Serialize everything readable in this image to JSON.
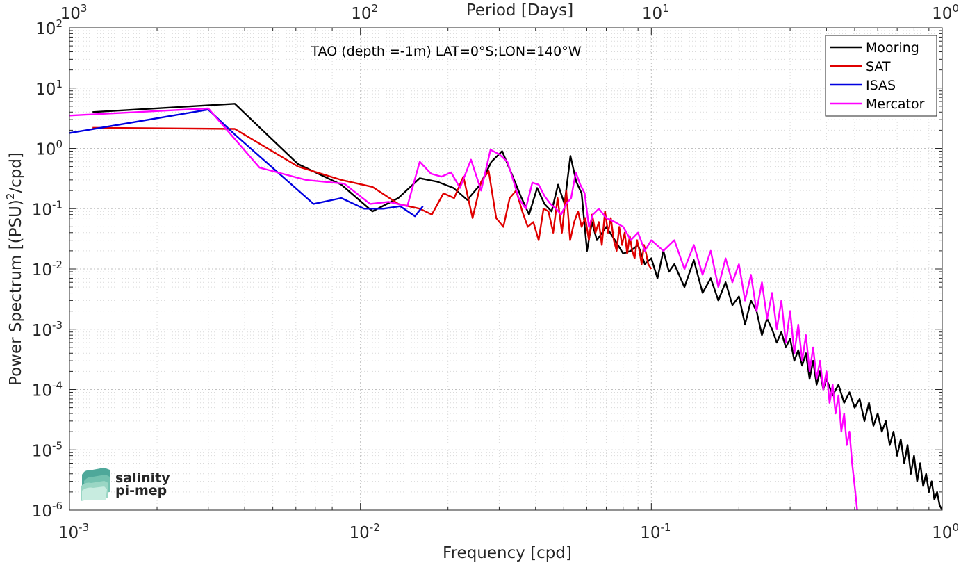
{
  "chart_data": {
    "type": "line",
    "title": "TAO (depth =-1m) LAT=0°S;LON=140°W",
    "xlabel": "Frequency [cpd]",
    "ylabel_main": "Power Spectrum [(PSU)",
    "ylabel_sup": "2",
    "ylabel_tail": "/cpd]",
    "top_xlabel": "Period [Days]",
    "x_scale": "log",
    "y_scale": "log",
    "xlim": [
      0.001,
      1
    ],
    "ylim": [
      1e-06,
      100
    ],
    "grid": true,
    "legend_position": "top-right",
    "x_ticks": [
      {
        "value": 0.001,
        "base": "10",
        "exp": "-3"
      },
      {
        "value": 0.01,
        "base": "10",
        "exp": "-2"
      },
      {
        "value": 0.1,
        "base": "10",
        "exp": "-1"
      },
      {
        "value": 1,
        "base": "10",
        "exp": "0"
      }
    ],
    "y_ticks": [
      {
        "value": 100,
        "base": "10",
        "exp": "2"
      },
      {
        "value": 10,
        "base": "10",
        "exp": "1"
      },
      {
        "value": 1,
        "base": "10",
        "exp": "0"
      },
      {
        "value": 0.1,
        "base": "10",
        "exp": "-1"
      },
      {
        "value": 0.01,
        "base": "10",
        "exp": "-2"
      },
      {
        "value": 0.001,
        "base": "10",
        "exp": "-3"
      },
      {
        "value": 0.0001,
        "base": "10",
        "exp": "-4"
      },
      {
        "value": 1e-05,
        "base": "10",
        "exp": "-5"
      },
      {
        "value": 1e-06,
        "base": "10",
        "exp": "-6"
      }
    ],
    "top_ticks": [
      {
        "period": 1000,
        "base": "10",
        "exp": "3"
      },
      {
        "period": 100,
        "base": "10",
        "exp": "2"
      },
      {
        "period": 10,
        "base": "10",
        "exp": "1"
      },
      {
        "period": 1,
        "base": "10",
        "exp": "0"
      }
    ],
    "series": [
      {
        "name": "Mooring",
        "color": "#000000",
        "x": [
          0.0012,
          0.0037,
          0.0061,
          0.0086,
          0.011,
          0.0135,
          0.016,
          0.0184,
          0.0209,
          0.0233,
          0.0258,
          0.0282,
          0.0307,
          0.0331,
          0.0356,
          0.038,
          0.0405,
          0.0429,
          0.0454,
          0.0478,
          0.0503,
          0.0527,
          0.0552,
          0.0576,
          0.0601,
          0.0625,
          0.065,
          0.07,
          0.075,
          0.08,
          0.085,
          0.09,
          0.095,
          0.1,
          0.105,
          0.11,
          0.115,
          0.12,
          0.13,
          0.14,
          0.15,
          0.16,
          0.17,
          0.18,
          0.19,
          0.2,
          0.21,
          0.22,
          0.23,
          0.24,
          0.25,
          0.26,
          0.27,
          0.28,
          0.29,
          0.3,
          0.31,
          0.32,
          0.33,
          0.34,
          0.35,
          0.36,
          0.37,
          0.38,
          0.39,
          0.4,
          0.42,
          0.44,
          0.46,
          0.48,
          0.5,
          0.52,
          0.54,
          0.56,
          0.58,
          0.6,
          0.62,
          0.64,
          0.66,
          0.68,
          0.7,
          0.72,
          0.74,
          0.76,
          0.78,
          0.8,
          0.82,
          0.84,
          0.86,
          0.88,
          0.9,
          0.92,
          0.94,
          0.96,
          0.98,
          1.0
        ],
        "y": [
          4.0,
          5.5,
          0.55,
          0.25,
          0.09,
          0.15,
          0.32,
          0.28,
          0.22,
          0.14,
          0.25,
          0.6,
          0.9,
          0.38,
          0.16,
          0.08,
          0.22,
          0.12,
          0.09,
          0.25,
          0.12,
          0.75,
          0.28,
          0.18,
          0.02,
          0.06,
          0.03,
          0.05,
          0.03,
          0.018,
          0.02,
          0.025,
          0.012,
          0.015,
          0.007,
          0.02,
          0.009,
          0.012,
          0.005,
          0.014,
          0.004,
          0.007,
          0.003,
          0.006,
          0.0025,
          0.0035,
          0.0012,
          0.003,
          0.002,
          0.0008,
          0.0015,
          0.001,
          0.0006,
          0.0009,
          0.0005,
          0.0007,
          0.0003,
          0.00045,
          0.00025,
          0.0004,
          0.00015,
          0.0003,
          0.00012,
          0.0002,
          0.0001,
          0.00015,
          8e-05,
          0.00012,
          6e-05,
          9e-05,
          5e-05,
          7e-05,
          3e-05,
          6e-05,
          2.5e-05,
          4e-05,
          2e-05,
          3e-05,
          1.2e-05,
          2e-05,
          8e-06,
          1.5e-05,
          6e-06,
          1.2e-05,
          4e-06,
          8e-06,
          3e-06,
          6e-06,
          2.5e-06,
          4e-06,
          2e-06,
          3e-06,
          1.5e-06,
          2e-06,
          1.2e-06,
          1e-06
        ]
      },
      {
        "name": "SAT",
        "color": "#e00000",
        "x": [
          0.0012,
          0.0037,
          0.0061,
          0.0086,
          0.011,
          0.0135,
          0.016,
          0.0176,
          0.0193,
          0.021,
          0.0226,
          0.0243,
          0.026,
          0.0276,
          0.0293,
          0.031,
          0.0326,
          0.0343,
          0.036,
          0.0376,
          0.0393,
          0.041,
          0.0426,
          0.0443,
          0.046,
          0.0476,
          0.0493,
          0.051,
          0.0526,
          0.0543,
          0.056,
          0.0576,
          0.0593,
          0.061,
          0.0626,
          0.0643,
          0.066,
          0.0676,
          0.0693,
          0.071,
          0.0726,
          0.0743,
          0.076,
          0.0776,
          0.0793,
          0.081,
          0.0826,
          0.0843,
          0.086,
          0.0876,
          0.0893,
          0.091,
          0.0926,
          0.0943,
          0.096,
          0.0976,
          0.1
        ],
        "y": [
          2.2,
          2.1,
          0.5,
          0.3,
          0.23,
          0.12,
          0.1,
          0.08,
          0.18,
          0.15,
          0.34,
          0.07,
          0.28,
          0.42,
          0.07,
          0.05,
          0.15,
          0.2,
          0.09,
          0.05,
          0.06,
          0.03,
          0.1,
          0.09,
          0.04,
          0.15,
          0.04,
          0.2,
          0.03,
          0.06,
          0.09,
          0.05,
          0.07,
          0.03,
          0.08,
          0.04,
          0.06,
          0.025,
          0.09,
          0.04,
          0.07,
          0.03,
          0.02,
          0.05,
          0.025,
          0.04,
          0.018,
          0.035,
          0.02,
          0.015,
          0.03,
          0.02,
          0.012,
          0.025,
          0.018,
          0.012,
          0.01
        ]
      },
      {
        "name": "ISAS",
        "color": "#0000e0",
        "x": [
          0.001,
          0.003,
          0.0037,
          0.0069,
          0.0086,
          0.0103,
          0.012,
          0.0137,
          0.0154,
          0.0164
        ],
        "y": [
          1.8,
          4.4,
          1.7,
          0.12,
          0.15,
          0.1,
          0.1,
          0.11,
          0.075,
          0.11
        ]
      },
      {
        "name": "Mercator",
        "color": "#ff00ff",
        "x": [
          0.001,
          0.003,
          0.0045,
          0.0065,
          0.0088,
          0.0108,
          0.0125,
          0.0145,
          0.016,
          0.0175,
          0.019,
          0.0205,
          0.022,
          0.024,
          0.026,
          0.028,
          0.03,
          0.032,
          0.0335,
          0.035,
          0.037,
          0.039,
          0.041,
          0.043,
          0.045,
          0.047,
          0.049,
          0.051,
          0.053,
          0.055,
          0.057,
          0.059,
          0.061,
          0.063,
          0.066,
          0.07,
          0.075,
          0.08,
          0.085,
          0.09,
          0.095,
          0.1,
          0.11,
          0.12,
          0.13,
          0.14,
          0.15,
          0.16,
          0.17,
          0.18,
          0.19,
          0.2,
          0.21,
          0.22,
          0.23,
          0.24,
          0.25,
          0.26,
          0.27,
          0.28,
          0.29,
          0.3,
          0.31,
          0.32,
          0.33,
          0.34,
          0.35,
          0.36,
          0.37,
          0.38,
          0.39,
          0.4,
          0.41,
          0.42,
          0.43,
          0.44,
          0.45,
          0.46,
          0.47,
          0.48,
          0.49,
          0.5,
          0.51
        ],
        "y": [
          3.5,
          4.6,
          0.48,
          0.3,
          0.26,
          0.12,
          0.13,
          0.11,
          0.6,
          0.38,
          0.34,
          0.4,
          0.22,
          0.65,
          0.2,
          0.95,
          0.8,
          0.6,
          0.3,
          0.15,
          0.1,
          0.27,
          0.25,
          0.16,
          0.12,
          0.1,
          0.08,
          0.12,
          0.15,
          0.4,
          0.25,
          0.18,
          0.05,
          0.08,
          0.1,
          0.07,
          0.06,
          0.05,
          0.03,
          0.04,
          0.02,
          0.03,
          0.02,
          0.03,
          0.01,
          0.025,
          0.008,
          0.02,
          0.005,
          0.015,
          0.006,
          0.012,
          0.003,
          0.008,
          0.002,
          0.006,
          0.0015,
          0.004,
          0.001,
          0.003,
          0.0006,
          0.002,
          0.0004,
          0.0012,
          0.0003,
          0.0008,
          0.0002,
          0.0005,
          0.00015,
          0.0003,
          0.0001,
          0.0002,
          6e-05,
          0.00012,
          4e-05,
          8e-05,
          2e-05,
          4e-05,
          1.2e-05,
          2e-05,
          6e-06,
          2.5e-06,
          1e-06
        ]
      }
    ]
  },
  "logo": {
    "line1": "salinity",
    "line2": "pi-mep",
    "color_line1": "#1aa89a",
    "color_line2": "#1f5e63"
  }
}
